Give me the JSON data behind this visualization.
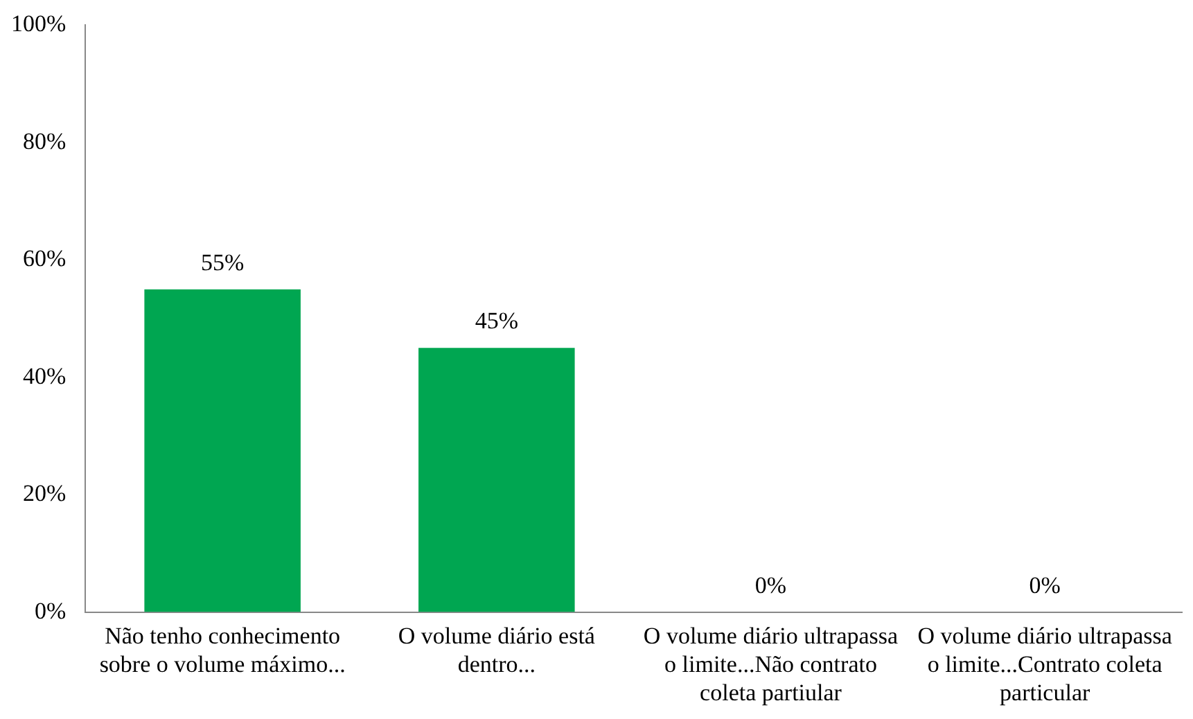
{
  "chart_data": {
    "type": "bar",
    "categories": [
      "Não tenho conhecimento sobre o volume máximo...",
      "O volume diário está dentro...",
      "O volume diário ultrapassa o limite...Não contrato coleta partiular",
      "O volume diário ultrapassa o limite...Contrato coleta particular"
    ],
    "values": [
      55,
      45,
      0,
      0
    ],
    "value_labels": [
      "55%",
      "45%",
      "0%",
      "0%"
    ],
    "color": "#00a651",
    "ylim": [
      0,
      100
    ],
    "yticks": [
      {
        "value": 0,
        "label": "0%"
      },
      {
        "value": 20,
        "label": "20%"
      },
      {
        "value": 40,
        "label": "40%"
      },
      {
        "value": 60,
        "label": "60%"
      },
      {
        "value": 80,
        "label": "80%"
      },
      {
        "value": 100,
        "label": "100%"
      }
    ],
    "grid": false,
    "legend": false
  }
}
